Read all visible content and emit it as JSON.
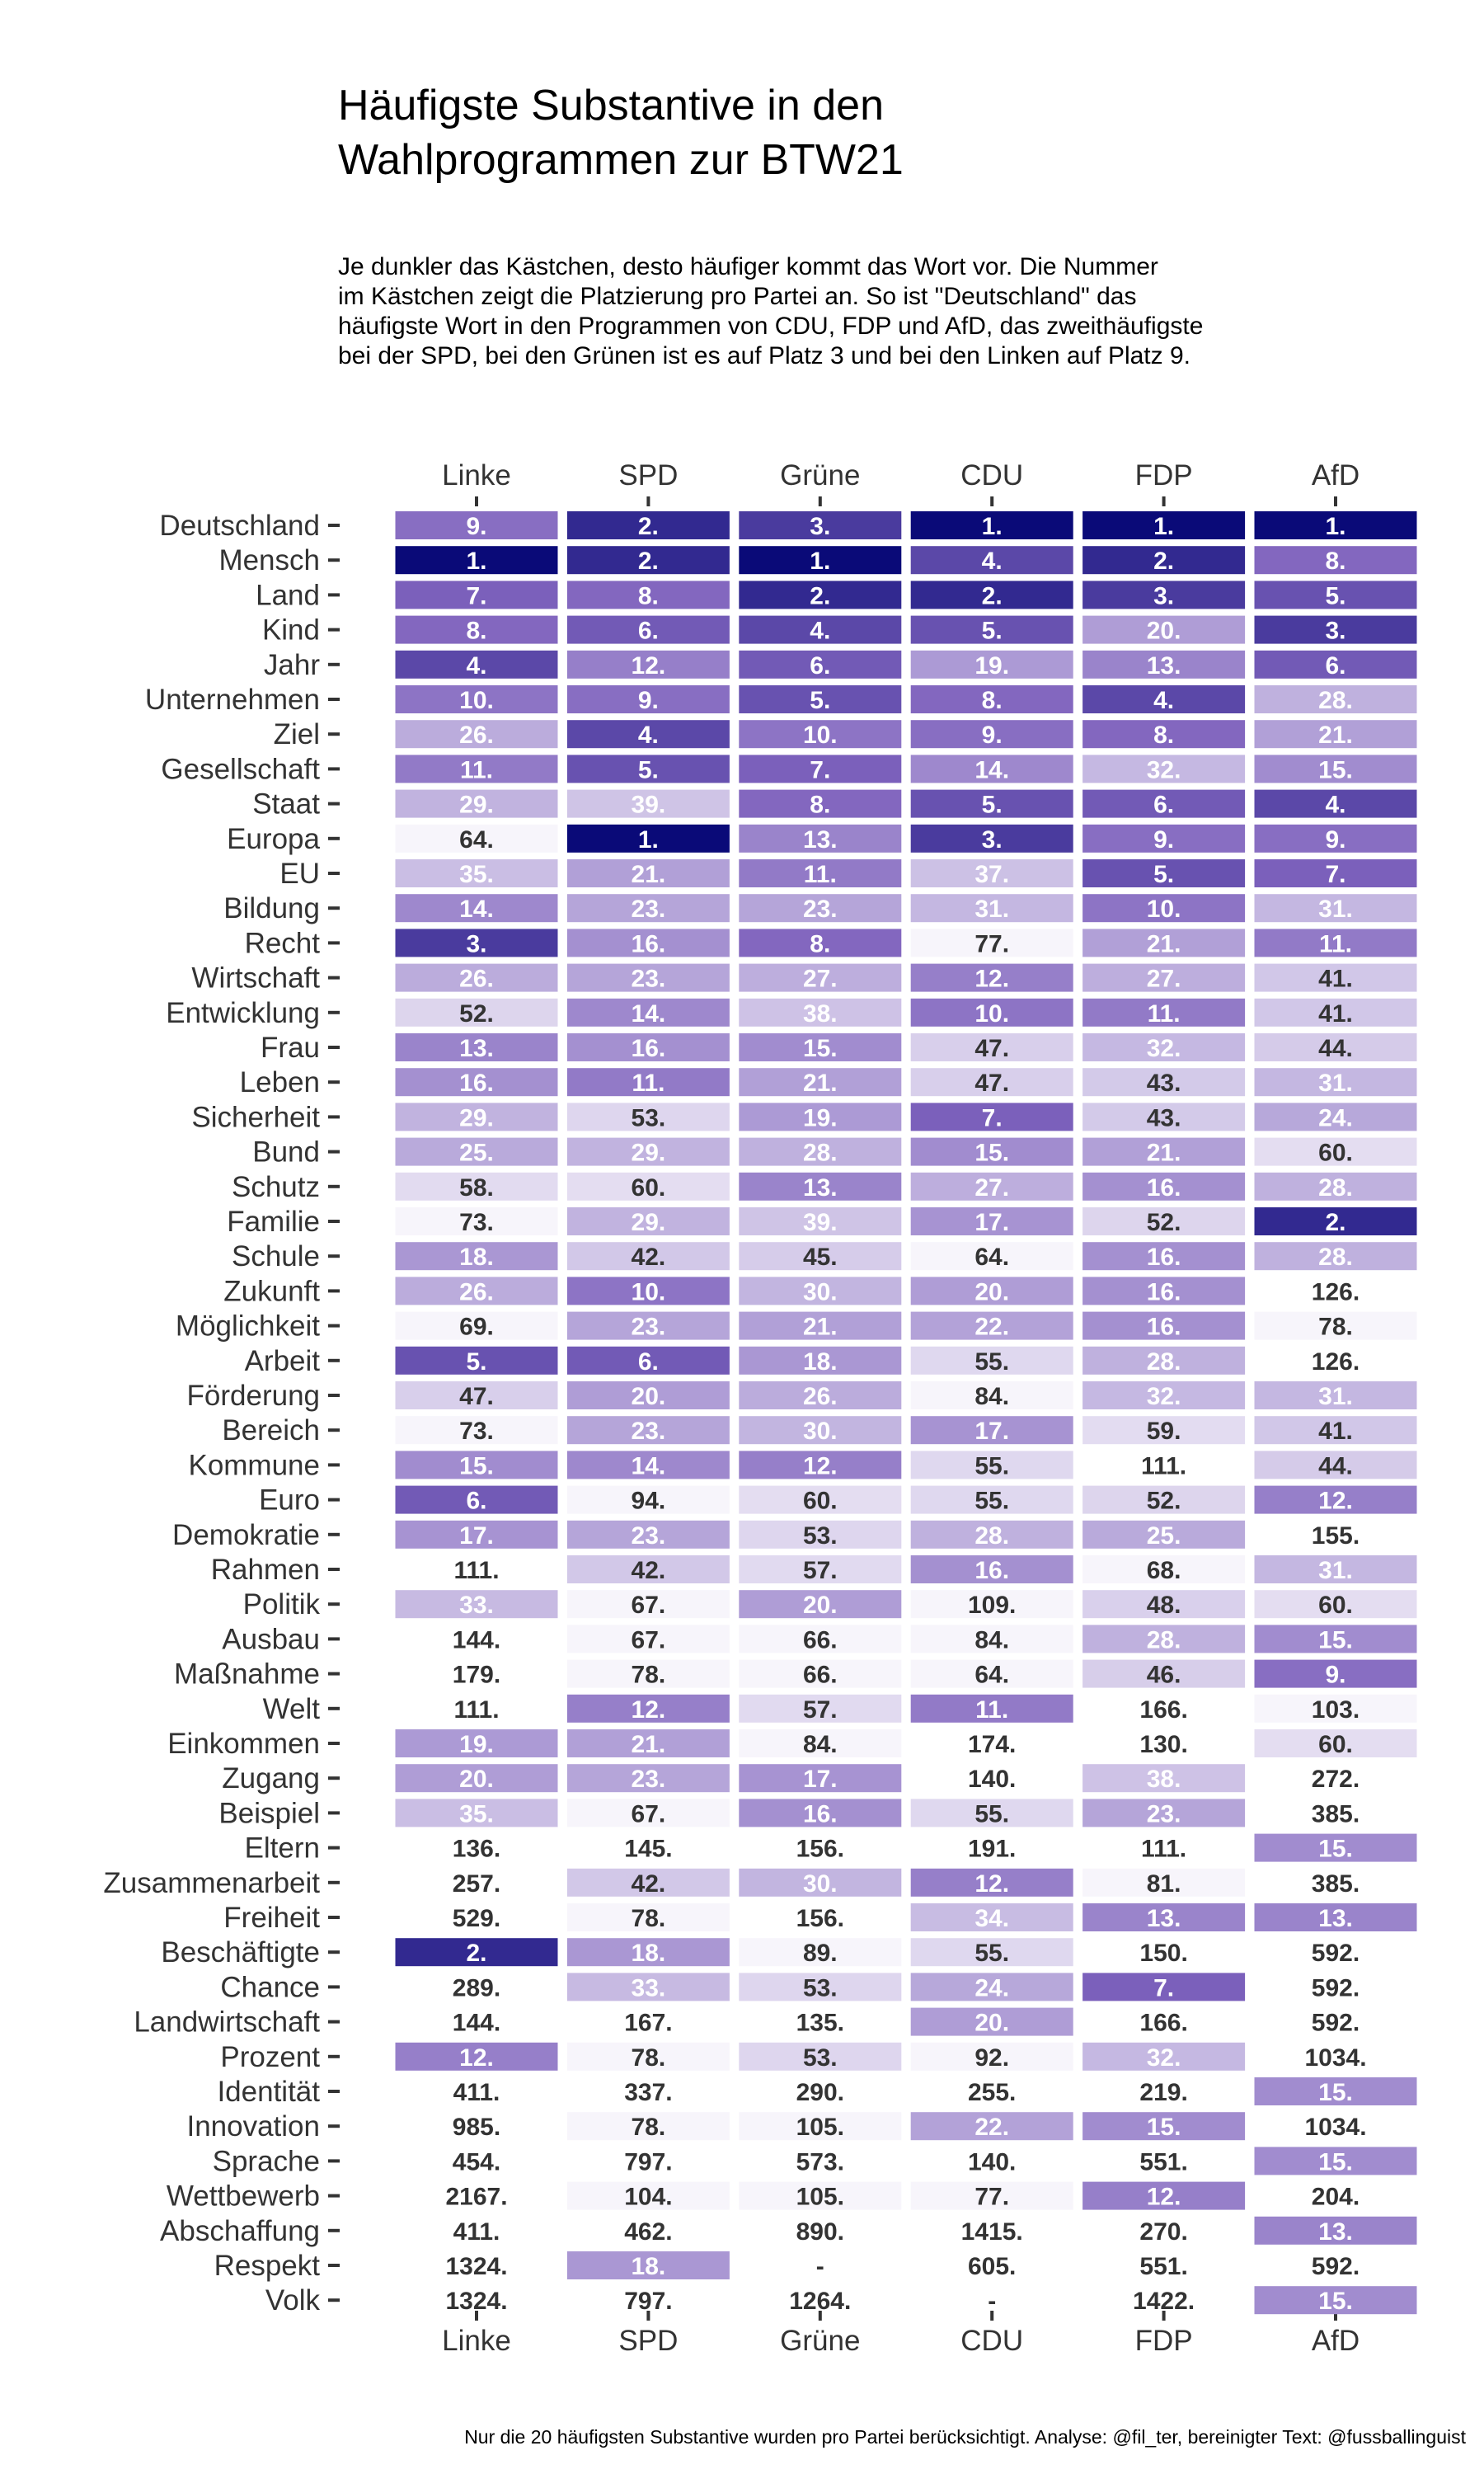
{
  "title": "Häufigste Substantive in den\nWahlprogrammen zur BTW21",
  "subtitle": "Je dunkler das Kästchen, desto häufiger kommt das Wort vor. Die Nummer\nim Kästchen zeigt die Platzierung pro Partei an. So ist \"Deutschland\" das\nhäufigste Wort in den Programmen von CDU, FDP und AfD, das zweithäufigste\nbei der SPD, bei den Grünen ist es auf Platz 3 und bei den Linken auf Platz 9.",
  "caption": "Nur die 20 häufigsten Substantive wurden pro Partei berücksichtigt. Analyse: @fil_ter, bereinigter Text: @fussballinguist",
  "colors": {
    "dark": "#0a0a78",
    "light": "#f7f5fb",
    "text_light": "#ffffff",
    "text_dark": "#333333",
    "axis": "#333333"
  },
  "chart_data": {
    "type": "heatmap",
    "x": [
      "Linke",
      "SPD",
      "Grüne",
      "CDU",
      "FDP",
      "AfD"
    ],
    "y": [
      "Deutschland",
      "Mensch",
      "Land",
      "Kind",
      "Jahr",
      "Unternehmen",
      "Ziel",
      "Gesellschaft",
      "Staat",
      "Europa",
      "EU",
      "Bildung",
      "Recht",
      "Wirtschaft",
      "Entwicklung",
      "Frau",
      "Leben",
      "Sicherheit",
      "Bund",
      "Schutz",
      "Familie",
      "Schule",
      "Zukunft",
      "Möglichkeit",
      "Arbeit",
      "Förderung",
      "Bereich",
      "Kommune",
      "Euro",
      "Demokratie",
      "Rahmen",
      "Politik",
      "Ausbau",
      "Maßnahme",
      "Welt",
      "Einkommen",
      "Zugang",
      "Beispiel",
      "Eltern",
      "Zusammenarbeit",
      "Freiheit",
      "Beschäftigte",
      "Chance",
      "Landwirtschaft",
      "Prozent",
      "Identität",
      "Innovation",
      "Sprache",
      "Wettbewerb",
      "Abschaffung",
      "Respekt",
      "Volk"
    ],
    "labels": [
      [
        "9.",
        "2.",
        "3.",
        "1.",
        "1.",
        "1."
      ],
      [
        "1.",
        "2.",
        "1.",
        "4.",
        "2.",
        "8."
      ],
      [
        "7.",
        "8.",
        "2.",
        "2.",
        "3.",
        "5."
      ],
      [
        "8.",
        "6.",
        "4.",
        "5.",
        "20.",
        "3."
      ],
      [
        "4.",
        "12.",
        "6.",
        "19.",
        "13.",
        "6."
      ],
      [
        "10.",
        "9.",
        "5.",
        "8.",
        "4.",
        "28."
      ],
      [
        "26.",
        "4.",
        "10.",
        "9.",
        "8.",
        "21."
      ],
      [
        "11.",
        "5.",
        "7.",
        "14.",
        "32.",
        "15."
      ],
      [
        "29.",
        "39.",
        "8.",
        "5.",
        "6.",
        "4."
      ],
      [
        "64.",
        "1.",
        "13.",
        "3.",
        "9.",
        "9."
      ],
      [
        "35.",
        "21.",
        "11.",
        "37.",
        "5.",
        "7."
      ],
      [
        "14.",
        "23.",
        "23.",
        "31.",
        "10.",
        "31."
      ],
      [
        "3.",
        "16.",
        "8.",
        "77.",
        "21.",
        "11."
      ],
      [
        "26.",
        "23.",
        "27.",
        "12.",
        "27.",
        "41."
      ],
      [
        "52.",
        "14.",
        "38.",
        "10.",
        "11.",
        "41."
      ],
      [
        "13.",
        "16.",
        "15.",
        "47.",
        "32.",
        "44."
      ],
      [
        "16.",
        "11.",
        "21.",
        "47.",
        "43.",
        "31."
      ],
      [
        "29.",
        "53.",
        "19.",
        "7.",
        "43.",
        "24."
      ],
      [
        "25.",
        "29.",
        "28.",
        "15.",
        "21.",
        "60."
      ],
      [
        "58.",
        "60.",
        "13.",
        "27.",
        "16.",
        "28."
      ],
      [
        "73.",
        "29.",
        "39.",
        "17.",
        "52.",
        "2."
      ],
      [
        "18.",
        "42.",
        "45.",
        "64.",
        "16.",
        "28."
      ],
      [
        "26.",
        "10.",
        "30.",
        "20.",
        "16.",
        "126."
      ],
      [
        "69.",
        "23.",
        "21.",
        "22.",
        "16.",
        "78."
      ],
      [
        "5.",
        "6.",
        "18.",
        "55.",
        "28.",
        "126."
      ],
      [
        "47.",
        "20.",
        "26.",
        "84.",
        "32.",
        "31."
      ],
      [
        "73.",
        "23.",
        "30.",
        "17.",
        "59.",
        "41."
      ],
      [
        "15.",
        "14.",
        "12.",
        "55.",
        "111.",
        "44."
      ],
      [
        "6.",
        "94.",
        "60.",
        "55.",
        "52.",
        "12."
      ],
      [
        "17.",
        "23.",
        "53.",
        "28.",
        "25.",
        "155."
      ],
      [
        "111.",
        "42.",
        "57.",
        "16.",
        "68.",
        "31."
      ],
      [
        "33.",
        "67.",
        "20.",
        "109.",
        "48.",
        "60."
      ],
      [
        "144.",
        "67.",
        "66.",
        "84.",
        "28.",
        "15."
      ],
      [
        "179.",
        "78.",
        "66.",
        "64.",
        "46.",
        "9."
      ],
      [
        "111.",
        "12.",
        "57.",
        "11.",
        "166.",
        "103."
      ],
      [
        "19.",
        "21.",
        "84.",
        "174.",
        "130.",
        "60."
      ],
      [
        "20.",
        "23.",
        "17.",
        "140.",
        "38.",
        "272."
      ],
      [
        "35.",
        "67.",
        "16.",
        "55.",
        "23.",
        "385."
      ],
      [
        "136.",
        "145.",
        "156.",
        "191.",
        "111.",
        "15."
      ],
      [
        "257.",
        "42.",
        "30.",
        "12.",
        "81.",
        "385."
      ],
      [
        "529.",
        "78.",
        "156.",
        "34.",
        "13.",
        "13."
      ],
      [
        "2.",
        "18.",
        "89.",
        "55.",
        "150.",
        "592."
      ],
      [
        "289.",
        "33.",
        "53.",
        "24.",
        "7.",
        "592."
      ],
      [
        "144.",
        "167.",
        "135.",
        "20.",
        "166.",
        "592."
      ],
      [
        "12.",
        "78.",
        "53.",
        "92.",
        "32.",
        "1034."
      ],
      [
        "411.",
        "337.",
        "290.",
        "255.",
        "219.",
        "15."
      ],
      [
        "985.",
        "78.",
        "105.",
        "22.",
        "15.",
        "1034."
      ],
      [
        "454.",
        "797.",
        "573.",
        "140.",
        "551.",
        "15."
      ],
      [
        "2167.",
        "104.",
        "105.",
        "77.",
        "12.",
        "204."
      ],
      [
        "411.",
        "462.",
        "890.",
        "1415.",
        "270.",
        "13."
      ],
      [
        "1324.",
        "18.",
        "-",
        "605.",
        "551.",
        "592."
      ],
      [
        "1324.",
        "797.",
        "1264.",
        "-",
        "1422.",
        "15."
      ]
    ],
    "ranks": [
      [
        9,
        2,
        3,
        1,
        1,
        1
      ],
      [
        1,
        2,
        1,
        4,
        2,
        8
      ],
      [
        7,
        8,
        2,
        2,
        3,
        5
      ],
      [
        8,
        6,
        4,
        5,
        20,
        3
      ],
      [
        4,
        12,
        6,
        19,
        13,
        6
      ],
      [
        10,
        9,
        5,
        8,
        4,
        28
      ],
      [
        26,
        4,
        10,
        9,
        8,
        21
      ],
      [
        11,
        5,
        7,
        14,
        32,
        15
      ],
      [
        29,
        39,
        8,
        5,
        6,
        4
      ],
      [
        64,
        1,
        13,
        3,
        9,
        9
      ],
      [
        35,
        21,
        11,
        37,
        5,
        7
      ],
      [
        14,
        23,
        23,
        31,
        10,
        31
      ],
      [
        3,
        16,
        8,
        77,
        21,
        11
      ],
      [
        26,
        23,
        27,
        12,
        27,
        41
      ],
      [
        52,
        14,
        38,
        10,
        11,
        41
      ],
      [
        13,
        16,
        15,
        47,
        32,
        44
      ],
      [
        16,
        11,
        21,
        47,
        43,
        31
      ],
      [
        29,
        53,
        19,
        7,
        43,
        24
      ],
      [
        25,
        29,
        28,
        15,
        21,
        60
      ],
      [
        58,
        60,
        13,
        27,
        16,
        28
      ],
      [
        73,
        29,
        39,
        17,
        52,
        2
      ],
      [
        18,
        42,
        45,
        64,
        16,
        28
      ],
      [
        26,
        10,
        30,
        20,
        16,
        126
      ],
      [
        69,
        23,
        21,
        22,
        16,
        78
      ],
      [
        5,
        6,
        18,
        55,
        28,
        126
      ],
      [
        47,
        20,
        26,
        84,
        32,
        31
      ],
      [
        73,
        23,
        30,
        17,
        59,
        41
      ],
      [
        15,
        14,
        12,
        55,
        111,
        44
      ],
      [
        6,
        94,
        60,
        55,
        52,
        12
      ],
      [
        17,
        23,
        53,
        28,
        25,
        155
      ],
      [
        111,
        42,
        57,
        16,
        68,
        31
      ],
      [
        33,
        67,
        20,
        109,
        48,
        60
      ],
      [
        144,
        67,
        66,
        84,
        28,
        15
      ],
      [
        179,
        78,
        66,
        64,
        46,
        9
      ],
      [
        111,
        12,
        57,
        11,
        166,
        103
      ],
      [
        19,
        21,
        84,
        174,
        130,
        60
      ],
      [
        20,
        23,
        17,
        140,
        38,
        272
      ],
      [
        35,
        67,
        16,
        55,
        23,
        385
      ],
      [
        136,
        145,
        156,
        191,
        111,
        15
      ],
      [
        257,
        42,
        30,
        12,
        81,
        385
      ],
      [
        529,
        78,
        156,
        34,
        13,
        13
      ],
      [
        2,
        18,
        89,
        55,
        150,
        592
      ],
      [
        289,
        33,
        53,
        24,
        7,
        592
      ],
      [
        144,
        167,
        135,
        20,
        166,
        592
      ],
      [
        12,
        78,
        53,
        92,
        32,
        1034
      ],
      [
        411,
        337,
        290,
        255,
        219,
        15
      ],
      [
        985,
        78,
        105,
        22,
        15,
        1034
      ],
      [
        454,
        797,
        573,
        140,
        551,
        15
      ],
      [
        2167,
        104,
        105,
        77,
        12,
        204
      ],
      [
        411,
        462,
        890,
        1415,
        270,
        13
      ],
      [
        1324,
        18,
        null,
        605,
        551,
        592
      ],
      [
        1324,
        797,
        1264,
        null,
        1422,
        15
      ]
    ],
    "xlabel": "",
    "ylabel": "",
    "x_axis_position": "top and bottom",
    "legend": "none"
  }
}
